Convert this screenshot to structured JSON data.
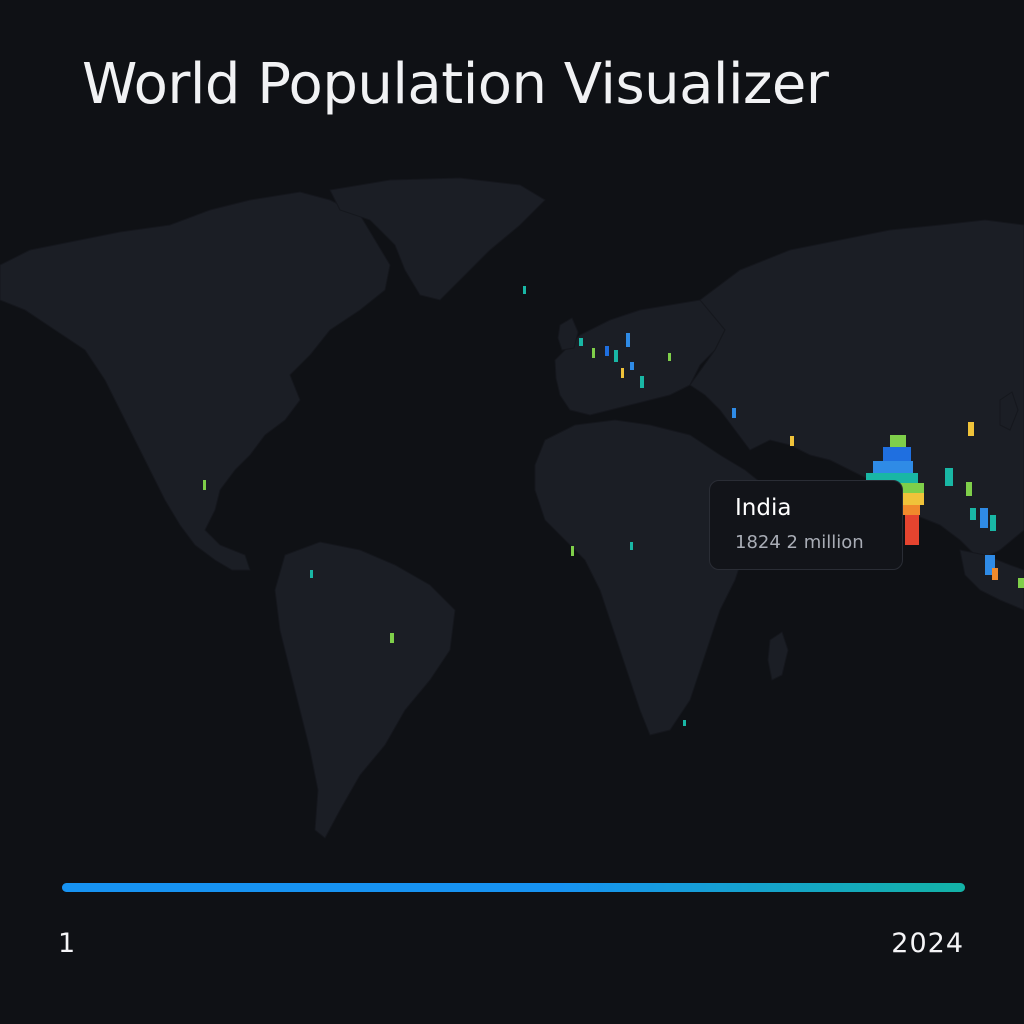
{
  "app": {
    "title": "World Population Visualizer"
  },
  "map": {
    "land_color": "#1b1e25",
    "ocean_color": "#0f1115",
    "heat_colors": [
      "#1f6fe0",
      "#2f8be6",
      "#19b7a5",
      "#7fcf4a",
      "#f0c33a",
      "#f08a2c",
      "#e5442f"
    ],
    "highlighted_country": "India"
  },
  "tooltip": {
    "country": "India",
    "value": "1824 2 million"
  },
  "timeline": {
    "start_label": "1",
    "end_label": "2024",
    "progress": 1.0,
    "color_start": "#1793f2",
    "color_end": "#13b3a6"
  }
}
